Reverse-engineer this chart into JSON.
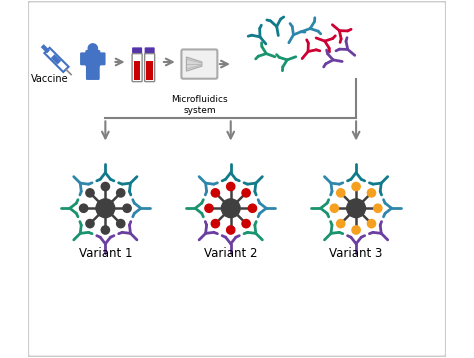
{
  "background_color": "#ffffff",
  "border_color": "#cccccc",
  "arrow_color": "#808080",
  "text_vaccine": "Vaccine",
  "text_microfluidics": "Microfluidics\nsystem",
  "text_variant1": "Variant 1",
  "text_variant2": "Variant 2",
  "text_variant3": "Variant 3",
  "person_color": "#4472c4",
  "blood_tube_color": "#cc0000",
  "blood_tube_cap_color": "#5533aa",
  "virus_center_color": "#404040",
  "spike_color_v1": "#404040",
  "spike_color_v2": "#cc0000",
  "spike_color_v3": "#f5a020",
  "syringe_color": "#4472c4",
  "ab_top": [
    [
      5.55,
      7.65,
      130,
      "#117a8b"
    ],
    [
      5.95,
      7.9,
      100,
      "#117a8b"
    ],
    [
      6.35,
      7.7,
      60,
      "#2e86ab"
    ],
    [
      6.75,
      7.85,
      20,
      "#2e86ab"
    ],
    [
      5.7,
      7.25,
      160,
      "#1a936f"
    ],
    [
      6.2,
      7.1,
      200,
      "#1a936f"
    ],
    [
      6.7,
      7.3,
      50,
      "#cc0033"
    ],
    [
      7.1,
      7.55,
      -20,
      "#cc0033"
    ],
    [
      7.45,
      7.8,
      -40,
      "#cc0033"
    ],
    [
      7.3,
      7.1,
      170,
      "#6b3fa0"
    ],
    [
      7.65,
      7.35,
      140,
      "#6b3fa0"
    ]
  ],
  "v1_ab": [
    [
      0,
      "#2e86ab"
    ],
    [
      45,
      "#117a8b"
    ],
    [
      90,
      "#117a8b"
    ],
    [
      135,
      "#2e86ab"
    ],
    [
      180,
      "#1a936f"
    ],
    [
      225,
      "#1a936f"
    ],
    [
      270,
      "#6b3fa0"
    ],
    [
      315,
      "#6b3fa0"
    ]
  ],
  "v2_ab": [
    [
      0,
      "#2e86ab"
    ],
    [
      45,
      "#117a8b"
    ],
    [
      90,
      "#117a8b"
    ],
    [
      135,
      "#2e86ab"
    ],
    [
      180,
      "#1a936f"
    ],
    [
      225,
      "#6b3fa0"
    ],
    [
      270,
      "#6b3fa0"
    ],
    [
      315,
      "#1a936f"
    ]
  ],
  "v3_ab": [
    [
      0,
      "#2e86ab"
    ],
    [
      45,
      "#117a8b"
    ],
    [
      90,
      "#117a8b"
    ],
    [
      135,
      "#2e86ab"
    ],
    [
      180,
      "#1a936f"
    ],
    [
      225,
      "#1a936f"
    ],
    [
      270,
      "#6b3fa0"
    ],
    [
      315,
      "#6b3fa0"
    ]
  ],
  "figsize": [
    4.74,
    3.58
  ],
  "dpi": 100
}
